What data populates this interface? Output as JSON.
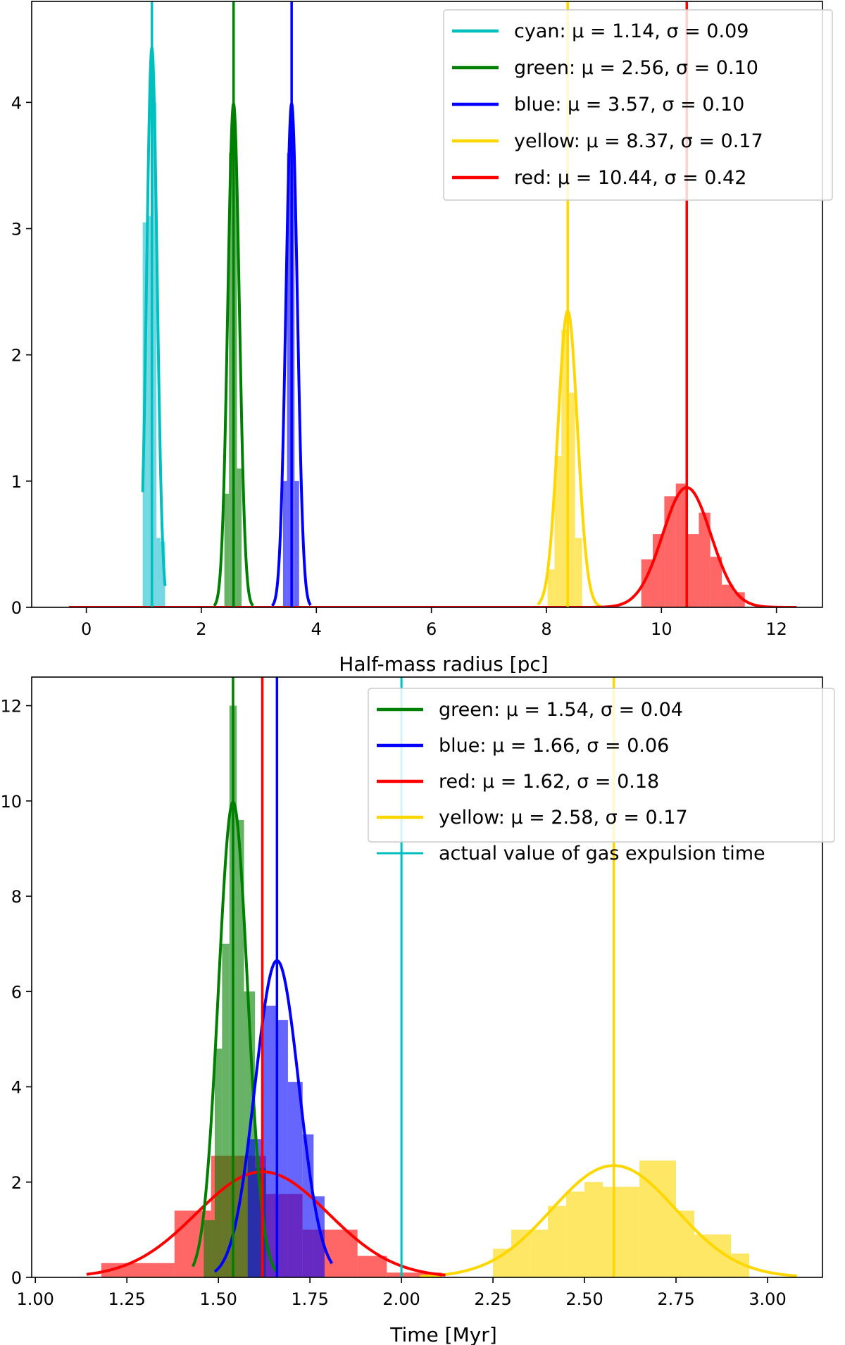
{
  "chart_data": [
    {
      "type": "histogram",
      "title": "",
      "xlabel": "Half-mass radius [pc]",
      "ylabel": "",
      "xlim": [
        -0.95,
        12.8
      ],
      "ylim": [
        0,
        4.8
      ],
      "xticks": [
        0,
        2,
        4,
        6,
        8,
        10,
        12
      ],
      "yticks": [
        0,
        1,
        2,
        3,
        4
      ],
      "legend_position": "top-right",
      "series": [
        {
          "name": "cyan",
          "color": "#17becf",
          "line_color": "#00bfbf",
          "mu": 1.14,
          "sigma": 0.09,
          "label": "cyan: μ = 1.14,  σ = 0.09",
          "fit_range": [
            0.98,
            1.37
          ],
          "bins": [
            {
              "x0": 0.98,
              "x1": 1.06,
              "h": 3.05
            },
            {
              "x0": 1.06,
              "x1": 1.14,
              "h": 3.1
            },
            {
              "x0": 1.14,
              "x1": 1.22,
              "h": 4.0
            },
            {
              "x0": 1.22,
              "x1": 1.29,
              "h": 0.55
            },
            {
              "x0": 1.29,
              "x1": 1.37,
              "h": 0.52
            }
          ]
        },
        {
          "name": "green",
          "color": "#008000",
          "line_color": "#008000",
          "mu": 2.56,
          "sigma": 0.1,
          "label": "green: μ = 2.56,  σ = 0.10",
          "fit_range": [
            2.22,
            2.9
          ],
          "bins": [
            {
              "x0": 2.4,
              "x1": 2.48,
              "h": 0.9
            },
            {
              "x0": 2.48,
              "x1": 2.54,
              "h": 3.6
            },
            {
              "x0": 2.54,
              "x1": 2.62,
              "h": 3.7
            },
            {
              "x0": 2.62,
              "x1": 2.7,
              "h": 1.1
            }
          ]
        },
        {
          "name": "blue",
          "color": "#0000ff",
          "line_color": "#0000ff",
          "mu": 3.57,
          "sigma": 0.1,
          "label": "blue: μ = 3.57,  σ = 0.10",
          "fit_range": [
            3.23,
            3.9
          ],
          "bins": [
            {
              "x0": 3.42,
              "x1": 3.49,
              "h": 1.0
            },
            {
              "x0": 3.49,
              "x1": 3.55,
              "h": 3.6
            },
            {
              "x0": 3.55,
              "x1": 3.62,
              "h": 3.75
            },
            {
              "x0": 3.62,
              "x1": 3.7,
              "h": 1.0
            }
          ]
        },
        {
          "name": "yellow",
          "color": "#ffd700",
          "line_color": "#ffd700",
          "mu": 8.37,
          "sigma": 0.17,
          "label": "yellow: μ = 8.37,  σ = 0.17",
          "fit_range": [
            7.85,
            8.95
          ],
          "bins": [
            {
              "x0": 8.02,
              "x1": 8.14,
              "h": 0.3
            },
            {
              "x0": 8.14,
              "x1": 8.26,
              "h": 1.2
            },
            {
              "x0": 8.26,
              "x1": 8.38,
              "h": 2.2
            },
            {
              "x0": 8.38,
              "x1": 8.5,
              "h": 1.7
            },
            {
              "x0": 8.5,
              "x1": 8.62,
              "h": 0.55
            }
          ]
        },
        {
          "name": "red",
          "color": "#ff0000",
          "line_color": "#ff0000",
          "mu": 10.44,
          "sigma": 0.42,
          "label": "red: μ = 10.44,  σ = 0.42",
          "fit_range": [
            -0.3,
            12.35
          ],
          "bins": [
            {
              "x0": 9.65,
              "x1": 9.85,
              "h": 0.38
            },
            {
              "x0": 9.85,
              "x1": 10.05,
              "h": 0.58
            },
            {
              "x0": 10.05,
              "x1": 10.25,
              "h": 0.88
            },
            {
              "x0": 10.25,
              "x1": 10.45,
              "h": 0.98
            },
            {
              "x0": 10.45,
              "x1": 10.65,
              "h": 0.58
            },
            {
              "x0": 10.65,
              "x1": 10.85,
              "h": 0.75
            },
            {
              "x0": 10.85,
              "x1": 11.05,
              "h": 0.4
            },
            {
              "x0": 11.05,
              "x1": 11.25,
              "h": 0.18
            },
            {
              "x0": 11.25,
              "x1": 11.45,
              "h": 0.12
            }
          ]
        }
      ]
    },
    {
      "type": "histogram",
      "title": "",
      "xlabel": "Time [Myr]",
      "ylabel": "",
      "xlim": [
        0.99,
        3.15
      ],
      "ylim": [
        0,
        12.6
      ],
      "xticks": [
        "1.00",
        "1.25",
        "1.50",
        "1.75",
        "2.00",
        "2.25",
        "2.50",
        "2.75",
        "3.00"
      ],
      "yticks": [
        0,
        2,
        4,
        6,
        8,
        10,
        12
      ],
      "legend_position": "top-right",
      "series": [
        {
          "name": "yellow",
          "color": "#ffd700",
          "line_color": "#ffd700",
          "mu": 2.58,
          "sigma": 0.17,
          "label": "yellow: μ = 2.58,  σ = 0.17",
          "in_legend": true,
          "fit_range": [
            2.05,
            3.08
          ],
          "bins": [
            {
              "x0": 2.25,
              "x1": 2.3,
              "h": 0.6
            },
            {
              "x0": 2.3,
              "x1": 2.35,
              "h": 1.0
            },
            {
              "x0": 2.35,
              "x1": 2.4,
              "h": 1.0
            },
            {
              "x0": 2.4,
              "x1": 2.45,
              "h": 1.5
            },
            {
              "x0": 2.45,
              "x1": 2.5,
              "h": 1.8
            },
            {
              "x0": 2.5,
              "x1": 2.55,
              "h": 2.0
            },
            {
              "x0": 2.55,
              "x1": 2.6,
              "h": 1.9
            },
            {
              "x0": 2.6,
              "x1": 2.65,
              "h": 1.9
            },
            {
              "x0": 2.65,
              "x1": 2.7,
              "h": 2.45
            },
            {
              "x0": 2.7,
              "x1": 2.75,
              "h": 2.45
            },
            {
              "x0": 2.75,
              "x1": 2.8,
              "h": 1.4
            },
            {
              "x0": 2.8,
              "x1": 2.85,
              "h": 0.9
            },
            {
              "x0": 2.85,
              "x1": 2.9,
              "h": 0.9
            },
            {
              "x0": 2.9,
              "x1": 2.95,
              "h": 0.5
            }
          ]
        },
        {
          "name": "red",
          "color": "#ff0000",
          "line_color": "#ff0000",
          "mu": 1.62,
          "sigma": 0.18,
          "label": "red: μ = 1.62,  σ = 0.18",
          "in_legend": true,
          "fit_range": [
            1.14,
            2.12
          ],
          "bins": [
            {
              "x0": 1.18,
              "x1": 1.38,
              "h": 0.3
            },
            {
              "x0": 1.38,
              "x1": 1.48,
              "h": 1.4
            },
            {
              "x0": 1.48,
              "x1": 1.63,
              "h": 2.55
            },
            {
              "x0": 1.63,
              "x1": 1.73,
              "h": 1.75
            },
            {
              "x0": 1.73,
              "x1": 1.88,
              "h": 1.0
            },
            {
              "x0": 1.88,
              "x1": 1.96,
              "h": 0.45
            },
            {
              "x0": 1.96,
              "x1": 2.11,
              "h": 0.1
            }
          ]
        },
        {
          "name": "green",
          "color": "#008000",
          "line_color": "#008000",
          "mu": 1.54,
          "sigma": 0.04,
          "label": "green: μ = 1.54,  σ = 0.04",
          "in_legend": true,
          "fit_range": [
            1.43,
            1.66
          ],
          "bins": [
            {
              "x0": 1.46,
              "x1": 1.49,
              "h": 1.2
            },
            {
              "x0": 1.49,
              "x1": 1.51,
              "h": 4.8
            },
            {
              "x0": 1.51,
              "x1": 1.53,
              "h": 7.0
            },
            {
              "x0": 1.53,
              "x1": 1.55,
              "h": 12.0
            },
            {
              "x0": 1.55,
              "x1": 1.57,
              "h": 9.6
            },
            {
              "x0": 1.57,
              "x1": 1.6,
              "h": 6.0
            },
            {
              "x0": 1.6,
              "x1": 1.63,
              "h": 2.3
            }
          ]
        },
        {
          "name": "blue",
          "color": "#0000ff",
          "line_color": "#0000ff",
          "mu": 1.66,
          "sigma": 0.06,
          "label": "blue: μ = 1.66,  σ = 0.06",
          "in_legend": true,
          "fit_range": [
            1.49,
            1.81
          ],
          "bins": [
            {
              "x0": 1.58,
              "x1": 1.62,
              "h": 2.9
            },
            {
              "x0": 1.62,
              "x1": 1.66,
              "h": 5.7
            },
            {
              "x0": 1.66,
              "x1": 1.69,
              "h": 5.4
            },
            {
              "x0": 1.69,
              "x1": 1.73,
              "h": 4.1
            },
            {
              "x0": 1.73,
              "x1": 1.76,
              "h": 3.0
            },
            {
              "x0": 1.76,
              "x1": 1.79,
              "h": 1.7
            }
          ]
        }
      ],
      "reference_line": {
        "x": 2.0,
        "color": "#00bfbf",
        "label": "actual value of gas expulsion time"
      }
    }
  ]
}
